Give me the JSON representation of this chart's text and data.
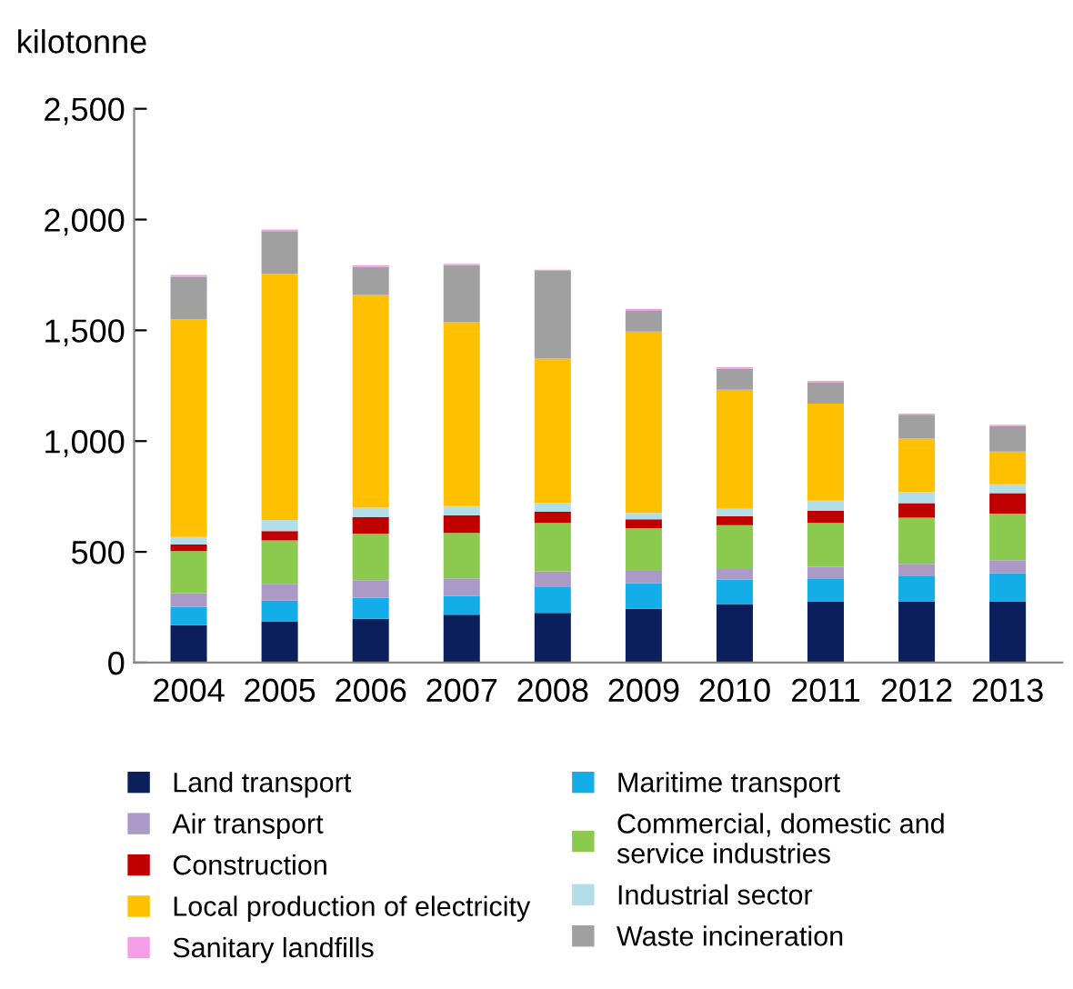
{
  "chart_data": {
    "type": "bar",
    "stacked": true,
    "ylabel": "kilotonne",
    "categories": [
      "2004",
      "2005",
      "2006",
      "2007",
      "2008",
      "2009",
      "2010",
      "2011",
      "2012",
      "2013"
    ],
    "ylim": [
      0,
      2500
    ],
    "yticks": [
      0,
      500,
      {
        "value": 1000,
        "label": "1,000"
      },
      {
        "value": 1500,
        "label": "1,500"
      },
      {
        "value": 2000,
        "label": "2,000"
      },
      {
        "value": 2500,
        "label": "2,500"
      }
    ],
    "grid": false,
    "legend": "bottom",
    "series": [
      {
        "name": "Land transport",
        "color": "#0a1f5c",
        "values": [
          169,
          187,
          198,
          216,
          224,
          243,
          264,
          277,
          277,
          277
        ]
      },
      {
        "name": "Maritime transport",
        "color": "#13aee8",
        "values": [
          82,
          93,
          95,
          85,
          119,
          116,
          111,
          103,
          116,
          127
        ]
      },
      {
        "name": "Air transport",
        "color": "#ab9ac8",
        "values": [
          63,
          76,
          79,
          79,
          69,
          55,
          47,
          53,
          53,
          58
        ]
      },
      {
        "name": "Commercial, domestic and\nservice industries",
        "color": "#8cc94f",
        "values": [
          190,
          196,
          211,
          206,
          219,
          193,
          198,
          198,
          208,
          211
        ]
      },
      {
        "name": "Construction",
        "color": "#c00000",
        "values": [
          29,
          42,
          74,
          79,
          50,
          40,
          40,
          55,
          66,
          92
        ]
      },
      {
        "name": "Industrial sector",
        "color": "#b3dde8",
        "values": [
          34,
          50,
          42,
          42,
          39,
          29,
          34,
          45,
          51,
          40
        ]
      },
      {
        "name": "Local production of electricity",
        "color": "#ffc000",
        "values": [
          982,
          1111,
          961,
          829,
          652,
          818,
          538,
          438,
          240,
          148
        ]
      },
      {
        "name": "Waste incineration",
        "color": "#a0a0a0",
        "values": [
          193,
          193,
          127,
          258,
          396,
          97,
          95,
          97,
          108,
          116
        ]
      },
      {
        "name": "Sanitary landfills",
        "color": "#f59de8",
        "values": [
          8,
          7,
          7,
          6,
          5,
          6,
          6,
          6,
          5,
          5
        ]
      }
    ]
  }
}
